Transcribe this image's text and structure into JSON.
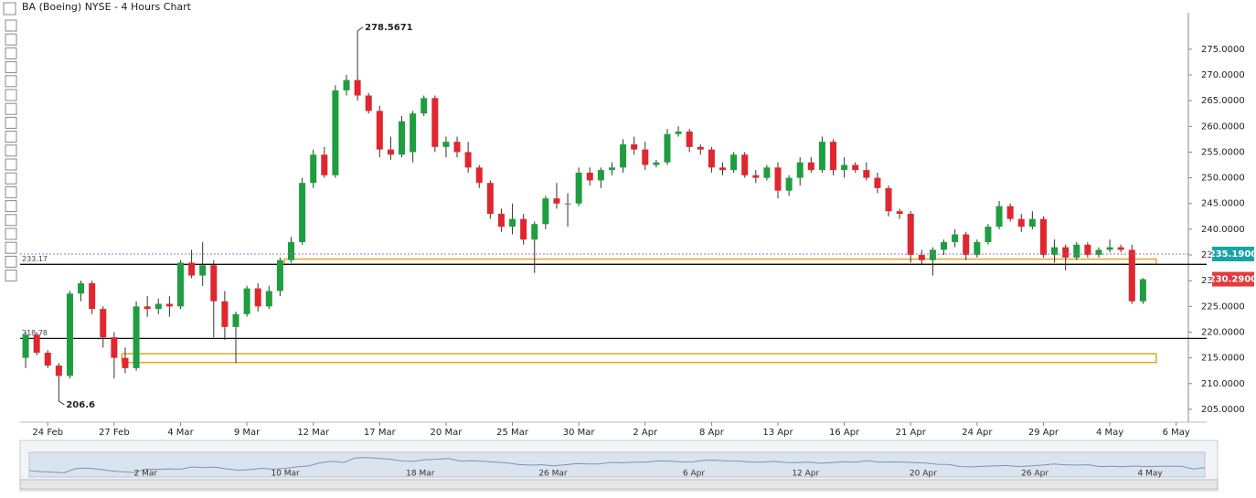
{
  "chart_data": {
    "type": "candlestick",
    "title": "BA (Boeing) NYSE - 4 Hours Chart",
    "up_color": "#1e9e3e",
    "down_color": "#e0262e",
    "xlim": [
      -0.5,
      105.1
    ],
    "ylim": [
      202.5,
      281.9
    ],
    "yticks": [
      {
        "value": 205,
        "label": "205.0000"
      },
      {
        "value": 210,
        "label": "210.0000"
      },
      {
        "value": 215,
        "label": "215.0000"
      },
      {
        "value": 220,
        "label": "220.0000"
      },
      {
        "value": 225,
        "label": "225.0000"
      },
      {
        "value": 230,
        "label": "230.0000"
      },
      {
        "value": 235,
        "label": "235.0000"
      },
      {
        "value": 240,
        "label": "240.0000"
      },
      {
        "value": 245,
        "label": "245.0000"
      },
      {
        "value": 250,
        "label": "250.0000"
      },
      {
        "value": 255,
        "label": "255.0000"
      },
      {
        "value": 260,
        "label": "260.0000"
      },
      {
        "value": 265,
        "label": "265.0000"
      },
      {
        "value": 270,
        "label": "270.0000"
      },
      {
        "value": 275,
        "label": "275.0000"
      }
    ],
    "xticks": [
      {
        "value": 2,
        "label": "24 Feb"
      },
      {
        "value": 8,
        "label": "27 Feb"
      },
      {
        "value": 14,
        "label": "4 Mar"
      },
      {
        "value": 20,
        "label": "9 Mar"
      },
      {
        "value": 26,
        "label": "12 Mar"
      },
      {
        "value": 32,
        "label": "17 Mar"
      },
      {
        "value": 38,
        "label": "20 Mar"
      },
      {
        "value": 44,
        "label": "25 Mar"
      },
      {
        "value": 50,
        "label": "30 Mar"
      },
      {
        "value": 56,
        "label": "2 Apr"
      },
      {
        "value": 62,
        "label": "8 Apr"
      },
      {
        "value": 68,
        "label": "13 Apr"
      },
      {
        "value": 74,
        "label": "16 Apr"
      },
      {
        "value": 80,
        "label": "21 Apr"
      },
      {
        "value": 86,
        "label": "24 Apr"
      },
      {
        "value": 92,
        "label": "29 Apr"
      },
      {
        "value": 98,
        "label": "4 May"
      },
      {
        "value": 104,
        "label": "6 May"
      }
    ],
    "open": [
      215,
      219.5,
      216,
      213.5,
      211.5,
      227.5,
      229.5,
      224.5,
      219,
      215,
      213,
      225,
      224.5,
      225.5,
      225,
      233.5,
      231,
      233,
      226,
      221,
      223.5,
      228.5,
      225,
      228,
      234,
      237.5,
      249,
      254.5,
      250.5,
      267,
      269,
      266,
      263,
      255.5,
      254.5,
      255,
      262.5,
      265.5,
      256,
      257,
      255,
      252,
      249,
      243,
      240.5,
      242,
      238,
      241,
      246,
      245,
      245,
      251,
      249.5,
      251.5,
      252,
      256.5,
      255.5,
      252.5,
      253,
      258.5,
      259,
      256,
      255.5,
      252,
      251.5,
      254.5,
      250.5,
      250,
      252,
      247.5,
      250,
      253,
      251.5,
      257,
      251.5,
      252.5,
      251.5,
      250,
      248,
      243.5,
      243,
      235,
      234,
      236,
      237.5,
      239,
      235,
      237.5,
      240.5,
      244.5,
      242,
      240.5,
      242,
      235,
      236.5,
      234.5,
      237,
      235,
      236,
      236.5,
      236,
      226
    ],
    "high": [
      220,
      220,
      216.5,
      214,
      228,
      230,
      230,
      225,
      220,
      217,
      226,
      227,
      226.5,
      227,
      234,
      236,
      237.5,
      234,
      228,
      224,
      229,
      229.5,
      229,
      234.5,
      238.5,
      250,
      255.5,
      256,
      268,
      270,
      278.5671,
      266.5,
      264,
      258,
      262,
      263,
      266,
      266,
      258,
      258,
      257,
      252.5,
      249.5,
      244,
      245,
      243,
      241.5,
      246.5,
      249,
      247,
      252,
      252,
      252,
      253,
      257.5,
      258,
      257,
      253.5,
      259.5,
      260,
      259.5,
      256.5,
      256,
      253,
      255,
      255,
      251.5,
      252.5,
      253,
      250.5,
      254,
      254,
      258,
      257.5,
      254,
      253,
      253,
      251,
      248.5,
      244,
      243.5,
      236,
      236.5,
      238,
      240,
      239.5,
      238,
      241,
      245.5,
      245,
      243,
      243.5,
      242.5,
      238,
      237,
      237.5,
      237.5,
      236.5,
      238,
      237,
      237,
      230.5
    ],
    "low": [
      213,
      215.5,
      213,
      206.6,
      211,
      226,
      223.5,
      217,
      211,
      212,
      212.5,
      223,
      223.5,
      223,
      224.5,
      230.5,
      229,
      219,
      218.5,
      214,
      223,
      224,
      224.5,
      227,
      233.5,
      237,
      248,
      250,
      250,
      266,
      265,
      262.5,
      254,
      253.5,
      254,
      253,
      262,
      255,
      254,
      254,
      251,
      248,
      242,
      239.5,
      239,
      237,
      231.5,
      240,
      244,
      240.5,
      244.5,
      248.5,
      248,
      250.5,
      251,
      254.5,
      251.5,
      252,
      252.5,
      258,
      255,
      254.5,
      251,
      250.5,
      251,
      250,
      249,
      249.5,
      246,
      246.5,
      248.5,
      251,
      251,
      250.5,
      250,
      251,
      249.5,
      247,
      242.5,
      242,
      233.5,
      233,
      231,
      235,
      236.5,
      234,
      234.5,
      237,
      240,
      241.5,
      239.5,
      240,
      234.5,
      233.5,
      232,
      234,
      234.5,
      234.5,
      235.5,
      235.5,
      225.5,
      225.5
    ],
    "close": [
      219.5,
      216,
      213.5,
      211.5,
      227.5,
      229.5,
      224.5,
      219,
      215,
      213,
      225,
      224.5,
      225.5,
      225,
      233.5,
      231,
      233,
      226,
      221,
      223.5,
      228.5,
      225,
      228,
      234,
      237.5,
      249,
      254.5,
      250.5,
      267,
      269,
      266,
      263,
      255.5,
      254.5,
      261,
      262.5,
      265.5,
      256,
      257,
      255,
      252,
      249,
      243,
      240.5,
      242,
      238,
      241,
      246,
      245,
      245,
      251,
      249.5,
      251.5,
      252,
      256.5,
      255.5,
      252.5,
      253,
      258.5,
      259,
      256,
      255.5,
      252,
      251.5,
      254.5,
      250.5,
      250,
      252,
      247.5,
      250,
      253,
      251.5,
      257,
      251.5,
      252.5,
      251.5,
      250,
      248,
      243.5,
      243,
      235,
      234,
      236,
      237.5,
      239,
      235,
      237.5,
      240.5,
      244.5,
      242,
      240.5,
      242,
      235,
      236.5,
      234.5,
      237,
      235,
      236,
      236.5,
      236,
      226,
      230.29
    ],
    "levels": [
      {
        "value": 233.17,
        "label": "233.17"
      },
      {
        "value": 218.78,
        "label": "218.78"
      }
    ],
    "zones": [
      {
        "from": 233.2,
        "to": 234.2,
        "start": 23.4,
        "end": 102.2
      },
      {
        "from": 214.1,
        "to": 215.8,
        "start": 8.7,
        "end": 102.2
      }
    ],
    "zone_color": "#e0a81e",
    "price_tags": [
      {
        "value": 235.19,
        "label": "235.1900",
        "color": "#1aa3a3"
      },
      {
        "value": 230.29,
        "label": "230.2900",
        "color": "#e03c3c"
      }
    ],
    "annotations": [
      {
        "index": 30,
        "value": 278.5671,
        "label": "278.5671"
      },
      {
        "index": 3,
        "value": 206.6,
        "label": "206.6"
      }
    ],
    "navigator": {
      "xlim": [
        0,
        101
      ],
      "labels": [
        {
          "value": 10,
          "label": "2 Mar"
        },
        {
          "value": 22,
          "label": "10 Mar"
        },
        {
          "value": 33.6,
          "label": "18 Mar"
        },
        {
          "value": 45,
          "label": "26 Mar"
        },
        {
          "value": 57.1,
          "label": "6 Apr"
        },
        {
          "value": 66.7,
          "label": "12 Apr"
        },
        {
          "value": 76.8,
          "label": "20 Apr"
        },
        {
          "value": 86.4,
          "label": "26 Apr"
        },
        {
          "value": 96.3,
          "label": "4 May"
        }
      ]
    }
  }
}
